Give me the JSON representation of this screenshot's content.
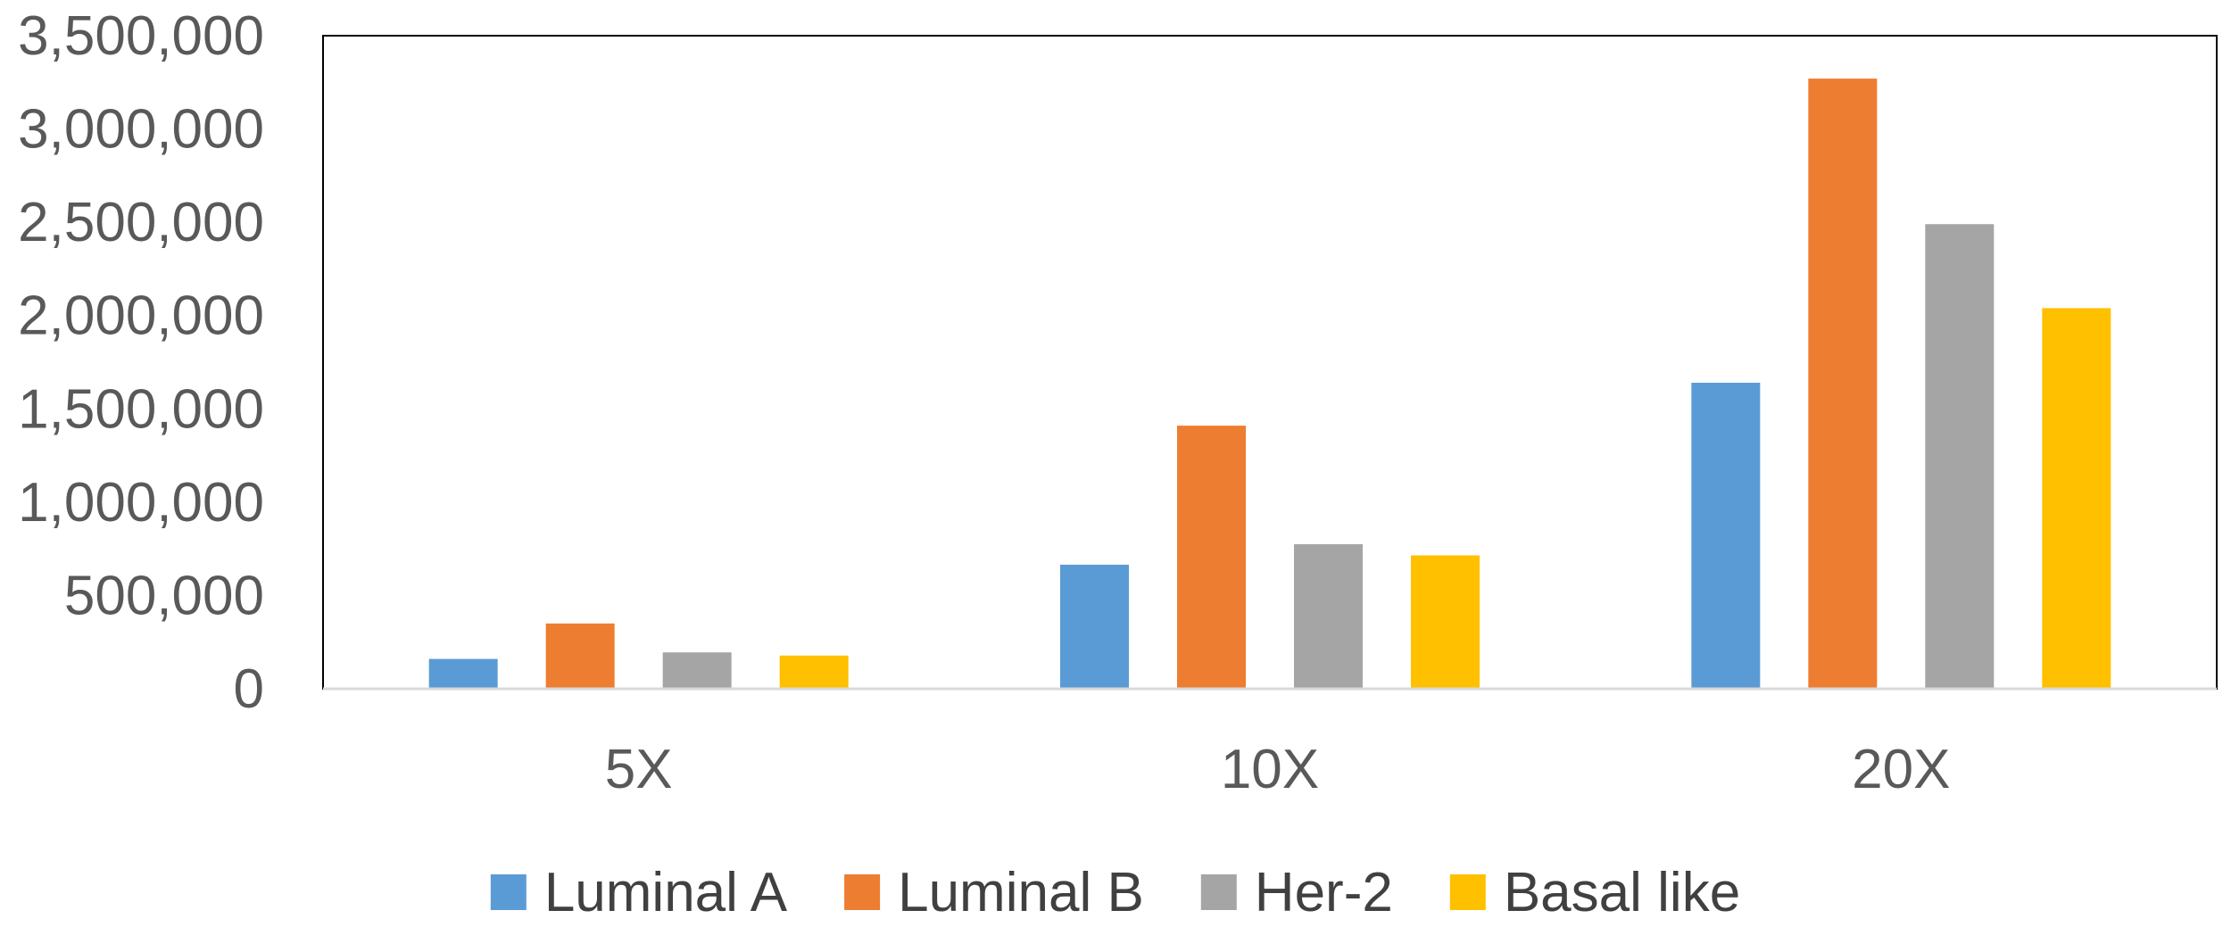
{
  "chart_data": {
    "type": "bar",
    "categories": [
      "5X",
      "10X",
      "20X"
    ],
    "series": [
      {
        "name": "Luminal A",
        "color": "#5b9bd5",
        "values": [
          160000,
          665000,
          1640000
        ]
      },
      {
        "name": "Luminal B",
        "color": "#ed7d31",
        "values": [
          350000,
          1410000,
          3270000
        ]
      },
      {
        "name": "Her-2",
        "color": "#a5a5a5",
        "values": [
          195000,
          775000,
          2490000
        ]
      },
      {
        "name": "Basal like",
        "color": "#ffc000",
        "values": [
          178000,
          715000,
          2040000
        ]
      }
    ],
    "y_ticks": [
      "0",
      "500,000",
      "1,000,000",
      "1,500,000",
      "2,000,000",
      "2,500,000",
      "3,000,000",
      "3,500,000"
    ],
    "ylim": [
      0,
      3500000
    ],
    "grid": false,
    "legend_position": "bottom"
  }
}
